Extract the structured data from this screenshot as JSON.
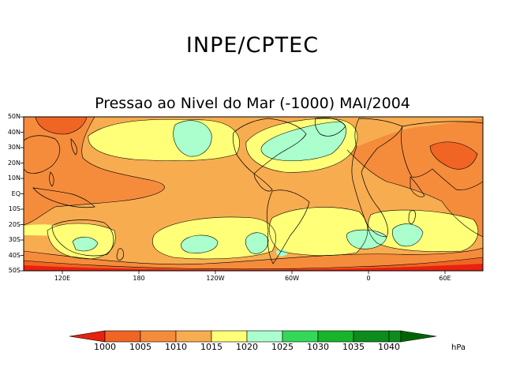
{
  "header": {
    "org": "INPE/CPTEC",
    "map_title": "Pressao ao Nivel do Mar (-1000) MAI/2004"
  },
  "axes": {
    "lat_labels": [
      "50N",
      "40N",
      "30N",
      "20N",
      "10N",
      "EQ",
      "10S",
      "20S",
      "30S",
      "40S",
      "50S"
    ],
    "lon_labels": [
      "120E",
      "180",
      "120W",
      "60W",
      "0",
      "60E"
    ]
  },
  "colorbar": {
    "levels": [
      "1000",
      "1005",
      "1010",
      "1015",
      "1020",
      "1025",
      "1030",
      "1035",
      "1040"
    ],
    "colors": [
      "#e8220e",
      "#f06424",
      "#f58c3c",
      "#f8ac50",
      "#ffff78",
      "#aaffcc",
      "#34d858",
      "#18b42c",
      "#0c8c1c",
      "#006400"
    ],
    "unit": "hPa"
  },
  "legend_colors": {
    "lt1005": "#f06424",
    "1005_1010": "#f58c3c",
    "1010_1015": "#f8ac50",
    "1015_1020": "#ffff78",
    "1020_1025": "#aaffcc"
  }
}
